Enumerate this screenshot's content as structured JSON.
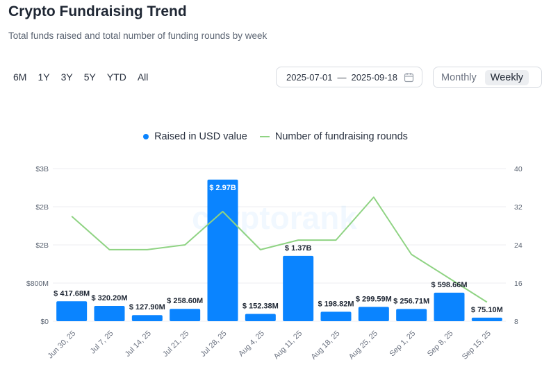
{
  "header": {
    "title": "Crypto Fundraising Trend",
    "subtitle": "Total funds raised and total number of funding rounds by week"
  },
  "ranges": [
    "6M",
    "1Y",
    "3Y",
    "5Y",
    "YTD",
    "All"
  ],
  "date_range": {
    "start": "2025-07-01",
    "separator": "—",
    "end": "2025-09-18"
  },
  "interval_toggle": {
    "options": [
      "Monthly",
      "Weekly"
    ],
    "selected": "Weekly"
  },
  "watermark": "cryptorank",
  "colors": {
    "bars": "#0a84ff",
    "line": "#8fd383",
    "grid": "#eceef1"
  },
  "chart_data": {
    "type": "bar",
    "categories": [
      "Jun 30, 25",
      "Jul 7, 25",
      "Jul 14, 25",
      "Jul 21, 25",
      "Jul 28, 25",
      "Aug 4, 25",
      "Aug 11, 25",
      "Aug 18, 25",
      "Aug 25, 25",
      "Sep 1, 25",
      "Sep 8, 25",
      "Sep 15, 25"
    ],
    "series": [
      {
        "name": "Raised in USD value",
        "type": "bar",
        "axis": "left",
        "values": [
          417680000,
          320200000,
          127900000,
          258600000,
          2970000000,
          152380000,
          1370000000,
          198820000,
          299590000,
          256710000,
          598660000,
          75100000
        ],
        "labels": [
          "$ 417.68M",
          "$ 320.20M",
          "$ 127.90M",
          "$ 258.60M",
          "$ 2.97B",
          "$ 152.38M",
          "$ 1.37B",
          "$ 198.82M",
          "$ 299.59M",
          "$ 256.71M",
          "$ 598.66M",
          "$ 75.10M"
        ]
      },
      {
        "name": "Number of fundraising rounds",
        "type": "line",
        "axis": "right",
        "values": [
          30,
          23,
          23,
          24,
          31,
          23,
          25,
          25,
          34,
          22,
          17,
          12
        ]
      }
    ],
    "y_left": {
      "ylim": [
        0,
        3200000000
      ],
      "ticks": [
        0,
        800000000,
        1600000000,
        2400000000,
        3200000000
      ],
      "tick_labels": [
        "$0",
        "$800M",
        "$2B",
        "$2B",
        "$3B"
      ]
    },
    "y_right": {
      "ylim": [
        8,
        40
      ],
      "ticks": [
        8,
        16,
        24,
        32,
        40
      ],
      "tick_labels": [
        "8",
        "16",
        "24",
        "32",
        "40"
      ]
    },
    "grid": true,
    "legend_position": "top-center"
  }
}
